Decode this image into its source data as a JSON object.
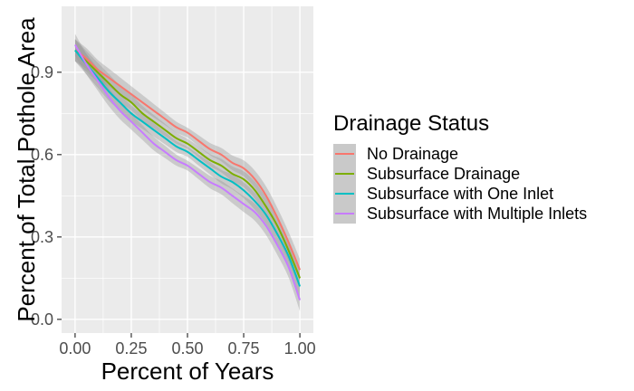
{
  "chart_data": {
    "type": "line",
    "xlabel": "Percent of Years",
    "ylabel": "Percent of Total Pothole Area",
    "xlim": [
      0,
      1
    ],
    "ylim": [
      0,
      1
    ],
    "x_ticks": [
      0.0,
      0.25,
      0.5,
      0.75,
      1.0
    ],
    "x_tick_labels": [
      "0.00",
      "0.25",
      "0.50",
      "0.75",
      "1.00"
    ],
    "y_ticks": [
      0.0,
      0.3,
      0.6,
      0.9
    ],
    "y_tick_labels": [
      "0.0",
      "0.3",
      "0.6",
      "0.9"
    ],
    "grid": true,
    "confidence_band": true,
    "legend": {
      "title": "Drainage Status",
      "placement": "right"
    },
    "x": [
      0.0,
      0.05,
      0.1,
      0.15,
      0.2,
      0.25,
      0.3,
      0.35,
      0.4,
      0.45,
      0.5,
      0.55,
      0.6,
      0.65,
      0.7,
      0.75,
      0.8,
      0.85,
      0.9,
      0.95,
      1.0
    ],
    "series": [
      {
        "name": "No Drainage",
        "color": "#F8766D",
        "values": [
          0.98,
          0.95,
          0.91,
          0.88,
          0.85,
          0.82,
          0.79,
          0.76,
          0.73,
          0.7,
          0.68,
          0.65,
          0.62,
          0.6,
          0.57,
          0.55,
          0.51,
          0.45,
          0.37,
          0.28,
          0.18
        ]
      },
      {
        "name": "Subsurface Drainage",
        "color": "#7CAE00",
        "values": [
          0.98,
          0.94,
          0.9,
          0.86,
          0.82,
          0.79,
          0.75,
          0.72,
          0.69,
          0.66,
          0.64,
          0.61,
          0.58,
          0.56,
          0.53,
          0.51,
          0.47,
          0.41,
          0.34,
          0.25,
          0.15
        ]
      },
      {
        "name": "Subsurface with One Inlet",
        "color": "#00BFC4",
        "values": [
          0.98,
          0.93,
          0.88,
          0.83,
          0.79,
          0.75,
          0.72,
          0.69,
          0.66,
          0.63,
          0.61,
          0.58,
          0.55,
          0.52,
          0.5,
          0.47,
          0.43,
          0.38,
          0.31,
          0.23,
          0.12
        ]
      },
      {
        "name": "Subsurface with Multiple Inlets",
        "color": "#C77CFF",
        "values": [
          1.0,
          0.93,
          0.87,
          0.81,
          0.76,
          0.72,
          0.68,
          0.64,
          0.61,
          0.58,
          0.56,
          0.53,
          0.5,
          0.48,
          0.45,
          0.42,
          0.39,
          0.34,
          0.27,
          0.19,
          0.07
        ]
      }
    ]
  }
}
